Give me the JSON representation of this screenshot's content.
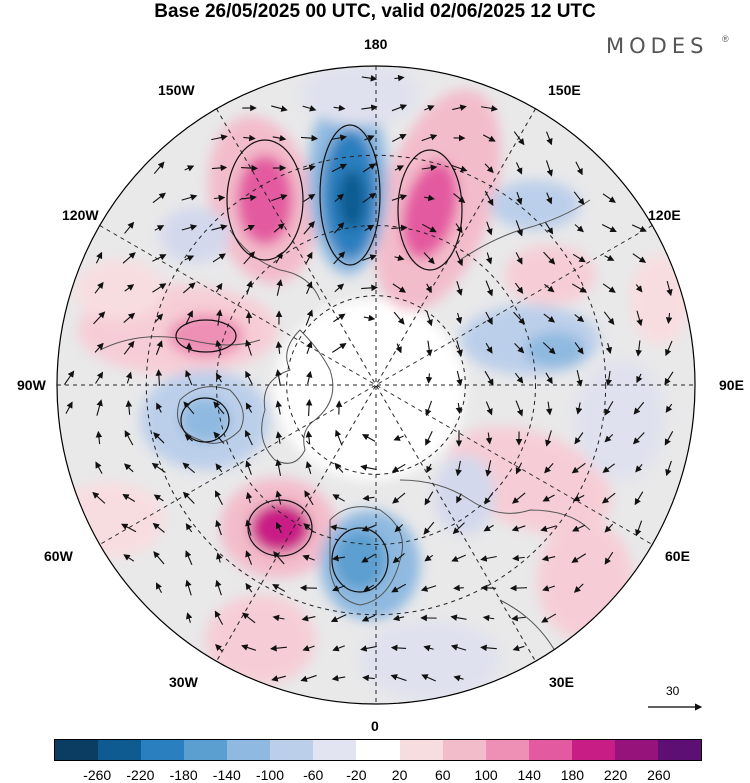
{
  "title": "Base 26/05/2025 00 UTC, valid 02/06/2025 12 UTC",
  "brand": {
    "name": "MODES",
    "mark": "®"
  },
  "map": {
    "projection": "north polar stereographic",
    "longitude_labels": {
      "top": "180",
      "bottom": "0",
      "left": "90W",
      "right": "90E",
      "upper_left_1": "150W",
      "upper_left_2": "120W",
      "upper_right_1": "150E",
      "upper_right_2": "120E",
      "lower_left_1": "60W",
      "lower_left_2": "30W",
      "lower_right_1": "60E",
      "lower_right_2": "30E"
    },
    "reference_vector": {
      "value": "30"
    }
  },
  "colorbar": {
    "colors": [
      "#0b3d63",
      "#0e5b91",
      "#2a7fbf",
      "#5b9fd0",
      "#8fb9e0",
      "#bccfea",
      "#e2e4f2",
      "#ffffff",
      "#f8dde0",
      "#f3bccb",
      "#ee8fb5",
      "#e45aa0",
      "#c91d86",
      "#95137a",
      "#5e0f73"
    ],
    "tick_labels": [
      "-260",
      "-220",
      "-180",
      "-140",
      "-100",
      "-60",
      "-20",
      "20",
      "60",
      "100",
      "140",
      "180",
      "220",
      "260"
    ]
  },
  "colors": {
    "land_fill": "#e6e6e6",
    "coast": "#555555",
    "grid": "#222222"
  }
}
